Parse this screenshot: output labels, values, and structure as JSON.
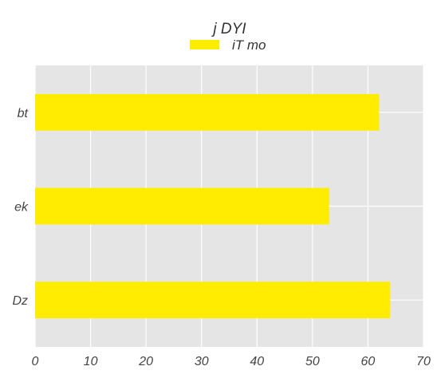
{
  "chart_data": {
    "type": "bar",
    "orientation": "horizontal",
    "title": "j DYI",
    "categories": [
      "bt",
      "ek",
      "Dz"
    ],
    "series": [
      {
        "name": "iT mo",
        "values": [
          62,
          53,
          64
        ],
        "color": "#ffec00"
      }
    ],
    "xlim": [
      0,
      70
    ],
    "xticks": [
      0,
      10,
      20,
      30,
      40,
      50,
      60,
      70
    ],
    "xlabel": "",
    "ylabel": "",
    "grid": true,
    "legend": "top-center",
    "plot_background": "#e5e5e5",
    "grid_color": "#ffffff"
  }
}
